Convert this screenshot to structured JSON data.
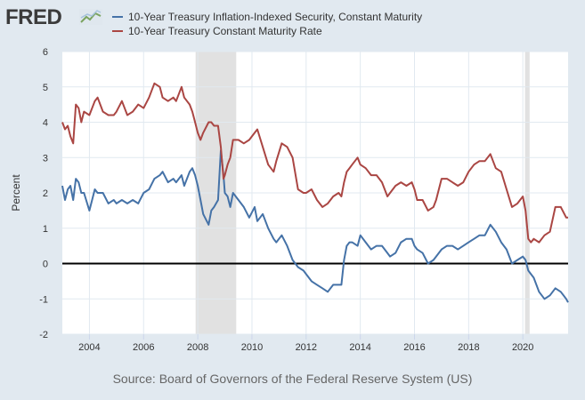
{
  "brand": {
    "logo_text": "FRED",
    "icon": "chart-line-icon"
  },
  "source": "Source: Board of Governors of the Federal Reserve System (US)",
  "colors": {
    "background": "#e1e9f0",
    "plot_bg": "#ffffff",
    "recession": "#e1e1e1",
    "series_tips": "#4572a7",
    "series_10y": "#aa4643",
    "zero_line": "#000000",
    "grid": "#e1e9f0"
  },
  "chart_data": {
    "type": "line",
    "title": "",
    "xlabel": "",
    "ylabel": "Percent",
    "xlim": [
      2003.0,
      2021.67
    ],
    "ylim": [
      -2,
      6
    ],
    "grid": true,
    "legend_position": "top-left",
    "x_ticks": [
      2004,
      2006,
      2008,
      2010,
      2012,
      2014,
      2016,
      2018,
      2020
    ],
    "x_tick_labels": [
      "2004",
      "2006",
      "2008",
      "2010",
      "2012",
      "2014",
      "2016",
      "2018",
      "2020"
    ],
    "y_ticks": [
      -2,
      -1,
      0,
      1,
      2,
      3,
      4,
      5,
      6
    ],
    "y_tick_labels": [
      "-2",
      "-1",
      "0",
      "1",
      "2",
      "3",
      "4",
      "5",
      "6"
    ],
    "reference_lines": [
      {
        "axis": "y",
        "value": 0
      }
    ],
    "recessions": [
      {
        "start": 2007.92,
        "end": 2009.42
      },
      {
        "start": 2020.08,
        "end": 2020.25
      }
    ],
    "series": [
      {
        "name": "10-Year Treasury Inflation-Indexed Security, Constant Maturity",
        "color": "#4572a7",
        "x": [
          2003.0,
          2003.1,
          2003.2,
          2003.3,
          2003.4,
          2003.5,
          2003.6,
          2003.7,
          2003.8,
          2004.0,
          2004.2,
          2004.3,
          2004.5,
          2004.7,
          2004.9,
          2005.0,
          2005.2,
          2005.4,
          2005.6,
          2005.8,
          2006.0,
          2006.2,
          2006.4,
          2006.6,
          2006.7,
          2006.9,
          2007.1,
          2007.2,
          2007.4,
          2007.5,
          2007.7,
          2007.8,
          2007.9,
          2008.0,
          2008.1,
          2008.2,
          2008.4,
          2008.5,
          2008.6,
          2008.75,
          2008.85,
          2008.95,
          2009.0,
          2009.1,
          2009.2,
          2009.3,
          2009.5,
          2009.7,
          2009.9,
          2010.1,
          2010.2,
          2010.4,
          2010.6,
          2010.8,
          2010.9,
          2011.1,
          2011.3,
          2011.5,
          2011.7,
          2011.9,
          2012.0,
          2012.2,
          2012.4,
          2012.6,
          2012.8,
          2013.0,
          2013.2,
          2013.3,
          2013.4,
          2013.5,
          2013.6,
          2013.7,
          2013.9,
          2014.0,
          2014.2,
          2014.4,
          2014.6,
          2014.8,
          2015.0,
          2015.1,
          2015.3,
          2015.5,
          2015.7,
          2015.9,
          2016.0,
          2016.1,
          2016.3,
          2016.5,
          2016.7,
          2016.8,
          2017.0,
          2017.2,
          2017.4,
          2017.6,
          2017.8,
          2018.0,
          2018.2,
          2018.4,
          2018.6,
          2018.8,
          2019.0,
          2019.2,
          2019.4,
          2019.6,
          2019.8,
          2020.0,
          2020.1,
          2020.2,
          2020.3,
          2020.4,
          2020.6,
          2020.8,
          2021.0,
          2021.2,
          2021.4,
          2021.6,
          2021.67
        ],
        "values": [
          2.2,
          1.8,
          2.1,
          2.2,
          1.8,
          2.4,
          2.3,
          2.0,
          2.0,
          1.5,
          2.1,
          2.0,
          2.0,
          1.7,
          1.8,
          1.7,
          1.8,
          1.7,
          1.8,
          1.7,
          2.0,
          2.1,
          2.4,
          2.5,
          2.6,
          2.3,
          2.4,
          2.3,
          2.5,
          2.2,
          2.6,
          2.7,
          2.5,
          2.2,
          1.8,
          1.4,
          1.1,
          1.5,
          1.6,
          1.8,
          3.2,
          2.5,
          2.0,
          1.9,
          1.6,
          2.0,
          1.8,
          1.6,
          1.3,
          1.6,
          1.2,
          1.4,
          1.0,
          0.7,
          0.6,
          0.8,
          0.5,
          0.1,
          -0.1,
          -0.2,
          -0.3,
          -0.5,
          -0.6,
          -0.7,
          -0.8,
          -0.6,
          -0.6,
          -0.6,
          0.1,
          0.5,
          0.6,
          0.6,
          0.5,
          0.8,
          0.6,
          0.4,
          0.5,
          0.5,
          0.3,
          0.2,
          0.3,
          0.6,
          0.7,
          0.7,
          0.5,
          0.4,
          0.3,
          0.0,
          0.1,
          0.2,
          0.4,
          0.5,
          0.5,
          0.4,
          0.5,
          0.6,
          0.7,
          0.8,
          0.8,
          1.1,
          0.9,
          0.6,
          0.4,
          0.0,
          0.1,
          0.2,
          0.1,
          -0.2,
          -0.3,
          -0.4,
          -0.8,
          -1.0,
          -0.9,
          -0.7,
          -0.8,
          -1.0,
          -1.1
        ]
      },
      {
        "name": "10-Year Treasury Constant Maturity Rate",
        "color": "#aa4643",
        "x": [
          2003.0,
          2003.1,
          2003.2,
          2003.3,
          2003.4,
          2003.5,
          2003.6,
          2003.7,
          2003.8,
          2004.0,
          2004.2,
          2004.3,
          2004.5,
          2004.7,
          2004.9,
          2005.0,
          2005.2,
          2005.4,
          2005.6,
          2005.8,
          2006.0,
          2006.2,
          2006.4,
          2006.6,
          2006.7,
          2006.9,
          2007.1,
          2007.2,
          2007.4,
          2007.5,
          2007.7,
          2007.8,
          2007.9,
          2008.0,
          2008.1,
          2008.2,
          2008.4,
          2008.5,
          2008.6,
          2008.75,
          2008.85,
          2008.95,
          2009.0,
          2009.1,
          2009.2,
          2009.3,
          2009.5,
          2009.7,
          2009.9,
          2010.1,
          2010.2,
          2010.4,
          2010.6,
          2010.8,
          2010.9,
          2011.1,
          2011.3,
          2011.5,
          2011.7,
          2011.9,
          2012.0,
          2012.2,
          2012.4,
          2012.6,
          2012.8,
          2013.0,
          2013.2,
          2013.3,
          2013.4,
          2013.5,
          2013.6,
          2013.7,
          2013.9,
          2014.0,
          2014.2,
          2014.4,
          2014.6,
          2014.8,
          2015.0,
          2015.1,
          2015.3,
          2015.5,
          2015.7,
          2015.9,
          2016.0,
          2016.1,
          2016.3,
          2016.5,
          2016.7,
          2016.8,
          2017.0,
          2017.2,
          2017.4,
          2017.6,
          2017.8,
          2018.0,
          2018.2,
          2018.4,
          2018.6,
          2018.8,
          2019.0,
          2019.2,
          2019.4,
          2019.6,
          2019.8,
          2020.0,
          2020.1,
          2020.2,
          2020.3,
          2020.4,
          2020.6,
          2020.8,
          2021.0,
          2021.2,
          2021.4,
          2021.6,
          2021.67
        ],
        "values": [
          4.0,
          3.8,
          3.9,
          3.6,
          3.4,
          4.5,
          4.4,
          4.0,
          4.3,
          4.2,
          4.6,
          4.7,
          4.3,
          4.2,
          4.2,
          4.3,
          4.6,
          4.2,
          4.3,
          4.5,
          4.4,
          4.7,
          5.1,
          5.0,
          4.7,
          4.6,
          4.7,
          4.6,
          5.0,
          4.7,
          4.5,
          4.3,
          4.0,
          3.7,
          3.5,
          3.7,
          4.0,
          4.0,
          3.9,
          3.9,
          3.3,
          2.4,
          2.5,
          2.8,
          3.0,
          3.5,
          3.5,
          3.4,
          3.5,
          3.7,
          3.8,
          3.3,
          2.8,
          2.6,
          2.9,
          3.4,
          3.3,
          3.0,
          2.1,
          2.0,
          2.0,
          2.1,
          1.8,
          1.6,
          1.7,
          1.9,
          2.0,
          1.9,
          2.3,
          2.6,
          2.7,
          2.8,
          3.0,
          2.8,
          2.7,
          2.5,
          2.5,
          2.3,
          1.9,
          2.0,
          2.2,
          2.3,
          2.2,
          2.3,
          2.1,
          1.8,
          1.8,
          1.5,
          1.6,
          1.8,
          2.4,
          2.4,
          2.3,
          2.2,
          2.3,
          2.6,
          2.8,
          2.9,
          2.9,
          3.1,
          2.7,
          2.6,
          2.1,
          1.6,
          1.7,
          1.9,
          1.5,
          0.7,
          0.6,
          0.7,
          0.6,
          0.8,
          0.9,
          1.6,
          1.6,
          1.3,
          1.3
        ]
      }
    ]
  }
}
